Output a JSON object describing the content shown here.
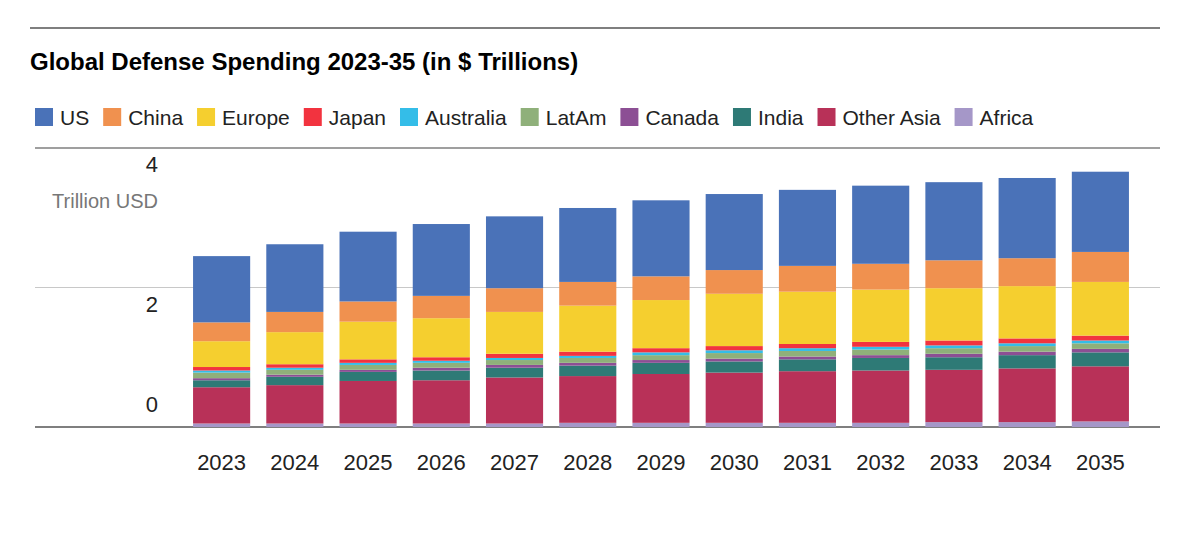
{
  "chart_data": {
    "type": "bar",
    "stacked": true,
    "grid": true,
    "legend": "top",
    "title": "Global Defense Spending 2023-35 (in $ Trillions)",
    "y_label": "Trillion USD",
    "categories": [
      "2023",
      "2024",
      "2025",
      "2026",
      "2027",
      "2028",
      "2029",
      "2030",
      "2031",
      "2032",
      "2033",
      "2034",
      "2035"
    ],
    "ylim": [
      0,
      4
    ],
    "yticks": [
      0,
      2,
      4
    ],
    "series": [
      {
        "name": "US",
        "color": "#4a72b8",
        "values": [
          0.95,
          0.97,
          1.0,
          1.03,
          1.03,
          1.06,
          1.09,
          1.09,
          1.09,
          1.12,
          1.12,
          1.15,
          1.15
        ]
      },
      {
        "name": "China",
        "color": "#f0914f",
        "values": [
          0.27,
          0.29,
          0.29,
          0.32,
          0.34,
          0.34,
          0.34,
          0.34,
          0.37,
          0.37,
          0.4,
          0.4,
          0.43
        ]
      },
      {
        "name": "Europe",
        "color": "#f5cf2f",
        "values": [
          0.37,
          0.46,
          0.54,
          0.56,
          0.6,
          0.66,
          0.69,
          0.75,
          0.75,
          0.75,
          0.75,
          0.75,
          0.77
        ]
      },
      {
        "name": "Japan",
        "color": "#f2333f",
        "values": [
          0.05,
          0.05,
          0.05,
          0.05,
          0.06,
          0.06,
          0.06,
          0.06,
          0.06,
          0.07,
          0.07,
          0.07,
          0.07
        ]
      },
      {
        "name": "Australia",
        "color": "#34bde8",
        "values": [
          0.03,
          0.03,
          0.03,
          0.03,
          0.03,
          0.03,
          0.04,
          0.04,
          0.04,
          0.04,
          0.04,
          0.04,
          0.04
        ]
      },
      {
        "name": "LatAm",
        "color": "#8fb07a",
        "values": [
          0.08,
          0.07,
          0.07,
          0.07,
          0.07,
          0.07,
          0.07,
          0.08,
          0.08,
          0.08,
          0.08,
          0.08,
          0.08
        ]
      },
      {
        "name": "Canada",
        "color": "#8c4f94",
        "values": [
          0.03,
          0.03,
          0.03,
          0.04,
          0.04,
          0.04,
          0.04,
          0.04,
          0.04,
          0.04,
          0.05,
          0.05,
          0.05
        ]
      },
      {
        "name": "India",
        "color": "#2e7a76",
        "values": [
          0.1,
          0.12,
          0.13,
          0.14,
          0.14,
          0.15,
          0.16,
          0.16,
          0.17,
          0.18,
          0.18,
          0.19,
          0.2
        ]
      },
      {
        "name": "Other Asia",
        "color": "#b83158",
        "values": [
          0.52,
          0.55,
          0.61,
          0.62,
          0.66,
          0.67,
          0.7,
          0.72,
          0.74,
          0.75,
          0.75,
          0.77,
          0.79
        ]
      },
      {
        "name": "Africa",
        "color": "#a597c8",
        "values": [
          0.05,
          0.05,
          0.05,
          0.05,
          0.05,
          0.06,
          0.06,
          0.06,
          0.06,
          0.06,
          0.07,
          0.07,
          0.08
        ]
      }
    ]
  }
}
